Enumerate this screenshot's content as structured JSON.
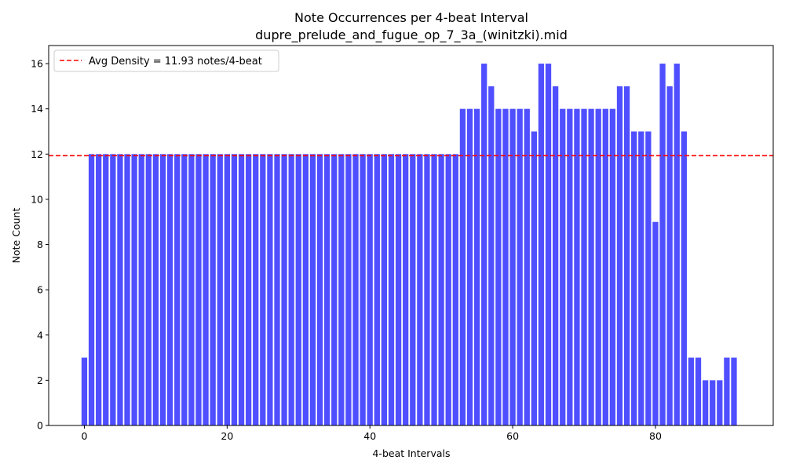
{
  "chart_data": {
    "type": "bar",
    "title": "Note Occurrences per 4-beat Interval",
    "subtitle": "dupre_prelude_and_fugue_op_7_3a_(winitzki).mid",
    "xlabel": "4-beat Intervals",
    "ylabel": "Note Count",
    "x": [
      0,
      1,
      2,
      3,
      4,
      5,
      6,
      7,
      8,
      9,
      10,
      11,
      12,
      13,
      14,
      15,
      16,
      17,
      18,
      19,
      20,
      21,
      22,
      23,
      24,
      25,
      26,
      27,
      28,
      29,
      30,
      31,
      32,
      33,
      34,
      35,
      36,
      37,
      38,
      39,
      40,
      41,
      42,
      43,
      44,
      45,
      46,
      47,
      48,
      49,
      50,
      51,
      52,
      53,
      54,
      55,
      56,
      57,
      58,
      59,
      60,
      61,
      62,
      63,
      64,
      65,
      66,
      67,
      68,
      69,
      70,
      71,
      72,
      73,
      74,
      75,
      76,
      77,
      78,
      79,
      80,
      81,
      82,
      83,
      84,
      85,
      86,
      87,
      88,
      89,
      90,
      91
    ],
    "values": [
      3,
      12,
      12,
      12,
      12,
      12,
      12,
      12,
      12,
      12,
      12,
      12,
      12,
      12,
      12,
      12,
      12,
      12,
      12,
      12,
      12,
      12,
      12,
      12,
      12,
      12,
      12,
      12,
      12,
      12,
      12,
      12,
      12,
      12,
      12,
      12,
      12,
      12,
      12,
      12,
      12,
      12,
      12,
      12,
      12,
      12,
      12,
      12,
      12,
      12,
      12,
      12,
      12,
      14,
      14,
      14,
      16,
      15,
      14,
      14,
      14,
      14,
      14,
      13,
      16,
      16,
      15,
      14,
      14,
      14,
      14,
      14,
      14,
      14,
      14,
      15,
      15,
      13,
      13,
      13,
      9,
      16,
      15,
      16,
      13,
      3,
      3,
      2,
      2,
      2,
      3,
      3
    ],
    "xlim": [
      -5,
      96.5
    ],
    "ylim": [
      0,
      16.8
    ],
    "xticks": [
      0,
      20,
      40,
      60,
      80
    ],
    "yticks": [
      0,
      2,
      4,
      6,
      8,
      10,
      12,
      14,
      16
    ],
    "bar_color": "#4646ff",
    "bar_width": 0.8,
    "grid": false,
    "legend_position": "top-left",
    "reference_line": {
      "value": 11.93,
      "label": "Avg Density = 11.93 notes/4-beat",
      "color": "#ff0000",
      "style": "dashed"
    }
  }
}
